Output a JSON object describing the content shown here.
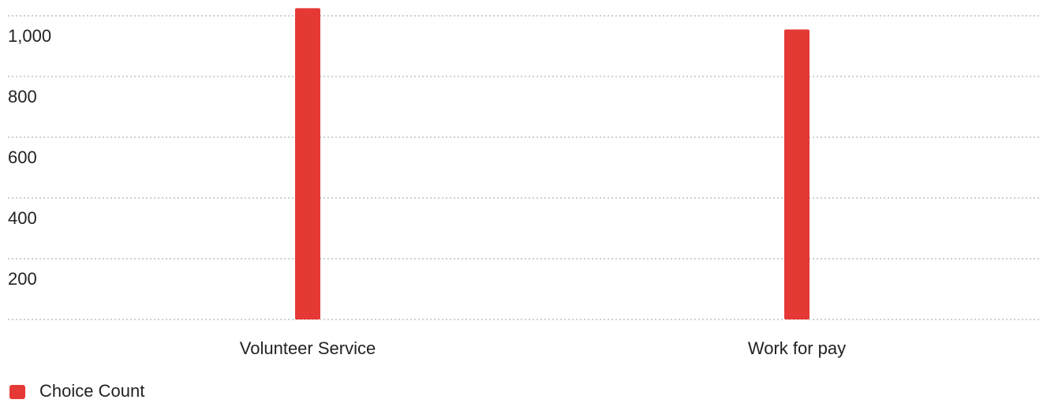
{
  "chart_data": {
    "type": "bar",
    "categories": [
      "Volunteer Service",
      "Work for pay"
    ],
    "series": [
      {
        "name": "Choice Count",
        "color": "#e53935",
        "values": [
          1025,
          955
        ]
      }
    ],
    "ylim": [
      0,
      1030
    ],
    "yticks": [
      200,
      400,
      600,
      800,
      {
        "value": 1000,
        "label": "1,000"
      }
    ],
    "grid": true,
    "legend": "bottom-left"
  }
}
